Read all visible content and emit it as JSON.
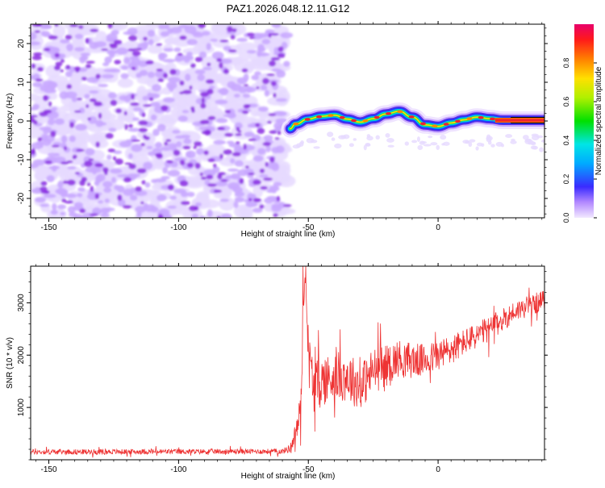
{
  "title": "PAZ1.2026.048.12.11.G12",
  "colors": {
    "axis": "#000000",
    "snr_line": "#ee3333",
    "ridge_core": "#ee2233",
    "noise_light": "#e6d9ff",
    "noise_mid": "#c9a8ff",
    "noise_dark": "#8a2be2"
  },
  "chart_data": [
    {
      "type": "heatmap",
      "name": "spectrogram",
      "xlabel": "Height of straight line (km)",
      "ylabel": "Frequency (Hz)",
      "xlim": [
        -157,
        41
      ],
      "ylim": [
        -25,
        25
      ],
      "xticks": [
        -150,
        -100,
        -50,
        0
      ],
      "yticks": [
        -20,
        -10,
        0,
        10,
        20
      ],
      "noise_region_x": [
        -157,
        -58
      ],
      "ridge": {
        "x": [
          -57,
          -55,
          -50,
          -45,
          -40,
          -35,
          -30,
          -25,
          -20,
          -15,
          -10,
          -5,
          0,
          5,
          10,
          15,
          20,
          25,
          30,
          35,
          41
        ],
        "y": [
          -2,
          -0.8,
          0.5,
          1.2,
          1.5,
          0.5,
          -0.3,
          0.6,
          1.8,
          2.5,
          1.0,
          -1.0,
          -1.4,
          -0.5,
          0.3,
          1.0,
          0.6,
          0.2,
          0.2,
          0.2,
          0.2
        ]
      },
      "colorbar": {
        "label": "Normalized spectral amplitude",
        "range": [
          0,
          1
        ],
        "ticks": [
          "0.0",
          "0.2",
          "0.4",
          "0.6",
          "0.8"
        ],
        "tick_values": [
          0,
          0.2,
          0.4,
          0.6,
          0.8
        ]
      }
    },
    {
      "type": "line",
      "name": "snr",
      "xlabel": "Height of straight line (km)",
      "ylabel": "SNR (10 * v/v)",
      "xlim": [
        -157,
        41
      ],
      "ylim": [
        0,
        3700
      ],
      "xticks": [
        -150,
        -100,
        -50,
        0
      ],
      "yticks": [
        1000,
        2000,
        3000
      ],
      "series": [
        {
          "name": "SNR",
          "x_control": [
            -157,
            -60,
            -57,
            -55,
            -53,
            -52,
            -51,
            -50,
            -48,
            -45,
            -40,
            -35,
            -30,
            -25,
            -20,
            -15,
            -10,
            -5,
            0,
            5,
            10,
            20,
            30,
            41
          ],
          "y_control": [
            150,
            160,
            220,
            500,
            900,
            2900,
            3650,
            2000,
            1400,
            1500,
            1600,
            1600,
            1400,
            1700,
            1800,
            1950,
            1900,
            1900,
            2000,
            2100,
            2250,
            2500,
            2850,
            3050
          ],
          "noise_amplitude": [
            50,
            50,
            80,
            200,
            400,
            600,
            100,
            550,
            500,
            500,
            450,
            500,
            450,
            450,
            400,
            350,
            350,
            300,
            300,
            300,
            250,
            250,
            200,
            200
          ]
        }
      ]
    }
  ]
}
